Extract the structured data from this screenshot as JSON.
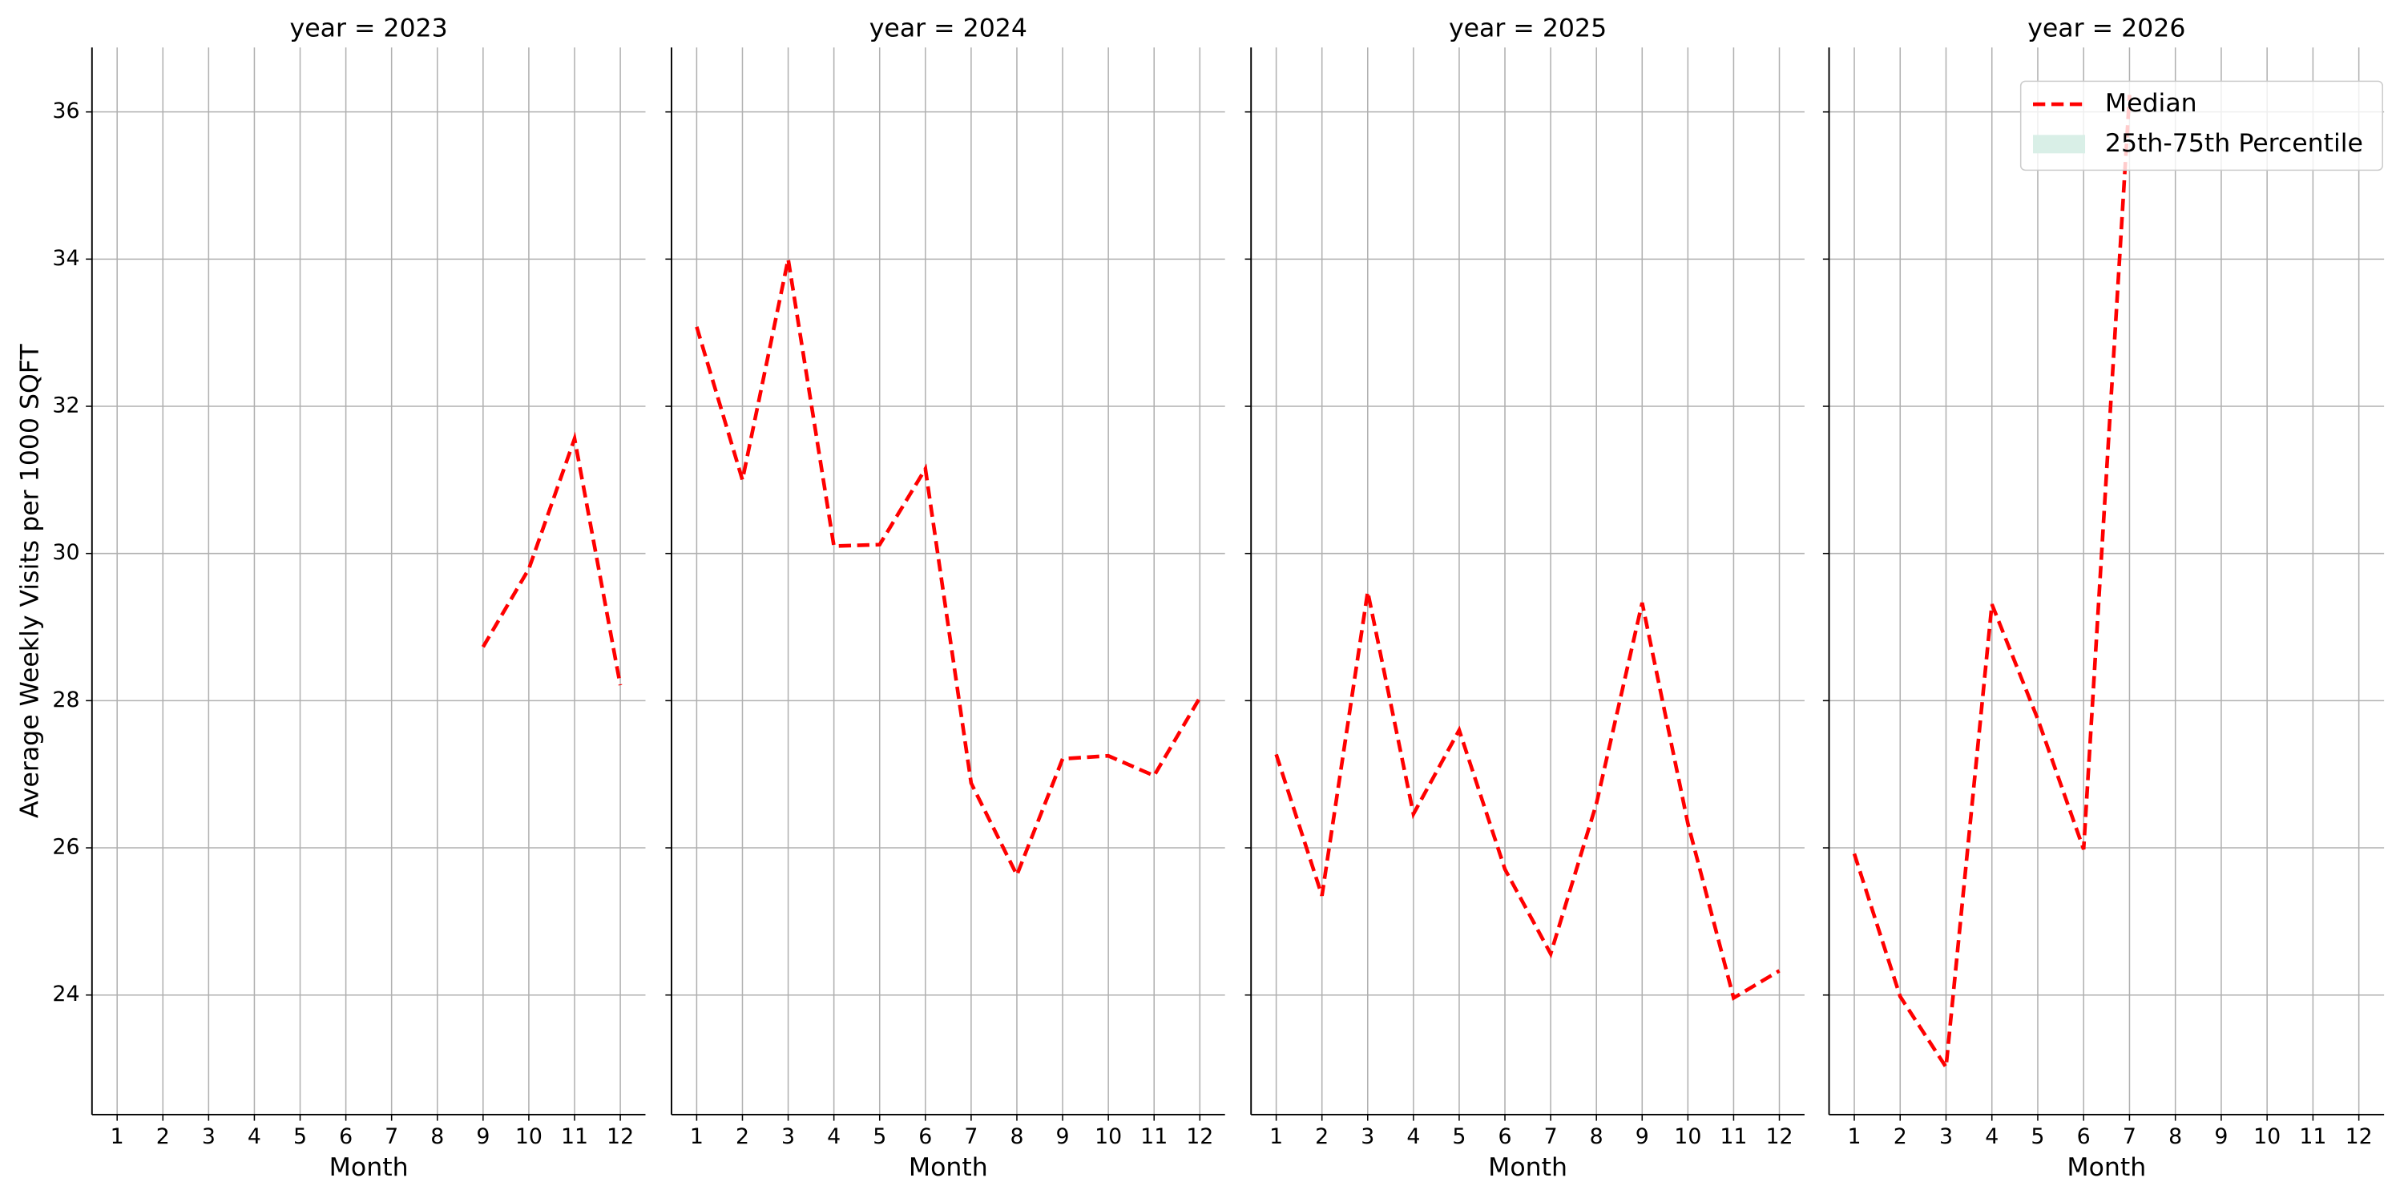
{
  "chart_data": [
    {
      "type": "line",
      "title": "year = 2023",
      "xlabel": "Month",
      "ylabel": "Average Weekly Visits per 1000 SQFT",
      "x": [
        1,
        2,
        3,
        4,
        5,
        6,
        7,
        8,
        9,
        10,
        11,
        12
      ],
      "series": [
        {
          "name": "Median",
          "color": "#ff0000",
          "dashed": true,
          "values": [
            null,
            null,
            null,
            null,
            null,
            null,
            null,
            null,
            28.73,
            29.79,
            31.56,
            28.21
          ]
        }
      ],
      "xlim": [
        0.45,
        12.55
      ],
      "ylim": [
        22.375,
        36.875
      ],
      "xticks": [
        1,
        2,
        3,
        4,
        5,
        6,
        7,
        8,
        9,
        10,
        11,
        12
      ],
      "yticks": [
        24,
        26,
        28,
        30,
        32,
        34,
        36
      ],
      "grid": true,
      "ytick_labels": true
    },
    {
      "type": "line",
      "title": "year = 2024",
      "xlabel": "Month",
      "x": [
        1,
        2,
        3,
        4,
        5,
        6,
        7,
        8,
        9,
        10,
        11,
        12
      ],
      "series": [
        {
          "name": "Median",
          "color": "#ff0000",
          "dashed": true,
          "values": [
            33.08,
            31.0,
            34.0,
            30.1,
            30.12,
            31.15,
            26.88,
            25.63,
            27.21,
            27.25,
            26.98,
            28.04
          ]
        }
      ],
      "xlim": [
        0.45,
        12.55
      ],
      "ylim": [
        22.375,
        36.875
      ],
      "xticks": [
        1,
        2,
        3,
        4,
        5,
        6,
        7,
        8,
        9,
        10,
        11,
        12
      ],
      "yticks": [
        24,
        26,
        28,
        30,
        32,
        34,
        36
      ],
      "grid": true,
      "ytick_labels": false
    },
    {
      "type": "line",
      "title": "year = 2025",
      "xlabel": "Month",
      "x": [
        1,
        2,
        3,
        4,
        5,
        6,
        7,
        8,
        9,
        10,
        11,
        12
      ],
      "series": [
        {
          "name": "Median",
          "color": "#ff0000",
          "dashed": true,
          "values": [
            27.27,
            25.35,
            29.48,
            26.46,
            27.6,
            25.71,
            24.56,
            26.6,
            29.33,
            26.33,
            23.96,
            24.33
          ]
        }
      ],
      "xlim": [
        0.45,
        12.55
      ],
      "ylim": [
        22.375,
        36.875
      ],
      "xticks": [
        1,
        2,
        3,
        4,
        5,
        6,
        7,
        8,
        9,
        10,
        11,
        12
      ],
      "yticks": [
        24,
        26,
        28,
        30,
        32,
        34,
        36
      ],
      "grid": true,
      "ytick_labels": false
    },
    {
      "type": "line",
      "title": "year = 2026",
      "xlabel": "Month",
      "x": [
        1,
        2,
        3,
        4,
        5,
        6,
        7,
        8,
        9,
        10,
        11,
        12
      ],
      "series": [
        {
          "name": "Median",
          "color": "#ff0000",
          "dashed": true,
          "values": [
            25.92,
            23.98,
            23.02,
            29.31,
            27.75,
            25.98,
            36.23,
            null,
            null,
            null,
            null,
            null
          ]
        }
      ],
      "xlim": [
        0.45,
        12.55
      ],
      "ylim": [
        22.375,
        36.875
      ],
      "xticks": [
        1,
        2,
        3,
        4,
        5,
        6,
        7,
        8,
        9,
        10,
        11,
        12
      ],
      "yticks": [
        24,
        26,
        28,
        30,
        32,
        34,
        36
      ],
      "grid": true,
      "ytick_labels": false,
      "legend": {
        "loc": "upper right",
        "entries": [
          {
            "name": "Median",
            "color": "#ff0000",
            "dashed": true
          },
          {
            "name": "25th-75th Percentile",
            "color": "#d9efe7",
            "dashed": false
          }
        ]
      }
    }
  ]
}
